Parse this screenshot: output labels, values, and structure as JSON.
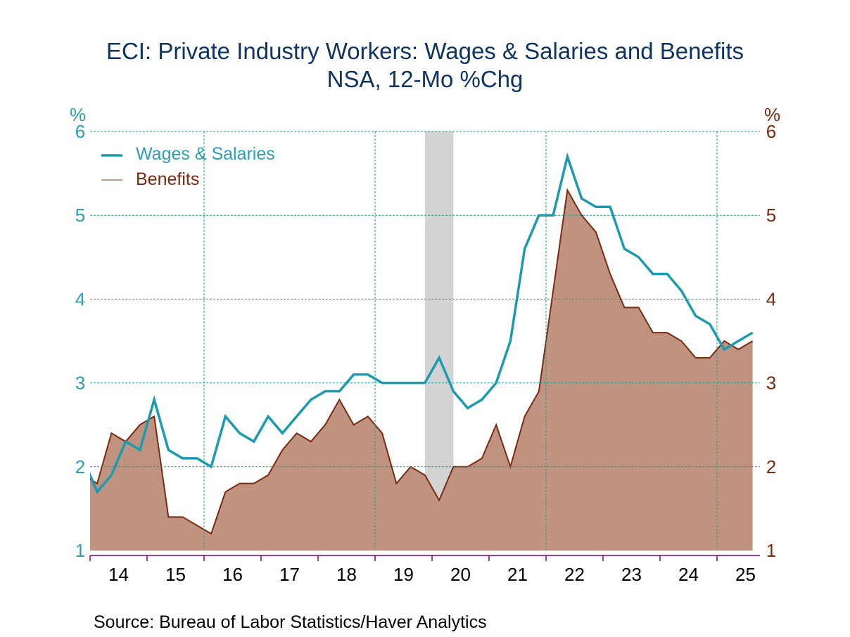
{
  "chart_data": {
    "type": "area",
    "title": "ECI: Private Industry Workers: Wages & Salaries and Benefits",
    "subtitle": "NSA, 12-Mo %Chg",
    "source": "Source:  Bureau of Labor Statistics/Haver Analytics",
    "frequency": "quarterly",
    "x": [
      "2013Q4",
      "2014Q1",
      "2014Q2",
      "2014Q3",
      "2014Q4",
      "2015Q1",
      "2015Q2",
      "2015Q3",
      "2015Q4",
      "2016Q1",
      "2016Q2",
      "2016Q3",
      "2016Q4",
      "2017Q1",
      "2017Q2",
      "2017Q3",
      "2017Q4",
      "2018Q1",
      "2018Q2",
      "2018Q3",
      "2018Q4",
      "2019Q1",
      "2019Q2",
      "2019Q3",
      "2019Q4",
      "2020Q1",
      "2020Q2",
      "2020Q3",
      "2020Q4",
      "2021Q1",
      "2021Q2",
      "2021Q3",
      "2021Q4",
      "2022Q1",
      "2022Q2",
      "2022Q3",
      "2022Q4",
      "2023Q1",
      "2023Q2",
      "2023Q3",
      "2023Q4",
      "2024Q1",
      "2024Q2",
      "2024Q3",
      "2024Q4",
      "2025Q1",
      "2025Q2",
      "2025Q3"
    ],
    "series": [
      {
        "name": "Wages & Salaries",
        "render": "line",
        "axis": "left",
        "color": "#1a9bb0",
        "values": [
          2.1,
          1.7,
          1.9,
          2.3,
          2.2,
          2.8,
          2.2,
          2.1,
          2.1,
          2.0,
          2.6,
          2.4,
          2.3,
          2.6,
          2.4,
          2.6,
          2.8,
          2.9,
          2.9,
          3.1,
          3.1,
          3.0,
          3.0,
          3.0,
          3.0,
          3.3,
          2.9,
          2.7,
          2.8,
          3.0,
          3.5,
          4.6,
          5.0,
          5.0,
          5.7,
          5.2,
          5.1,
          5.1,
          4.6,
          4.5,
          4.3,
          4.3,
          4.1,
          3.8,
          3.7,
          3.4,
          3.5,
          3.6
        ]
      },
      {
        "name": "Benefits",
        "render": "area",
        "axis": "right",
        "color": "#7a2a10",
        "fill": "#bf9380",
        "legend_color": "#b8a096",
        "values": [
          1.9,
          1.8,
          2.4,
          2.3,
          2.5,
          2.6,
          1.4,
          1.4,
          1.3,
          1.2,
          1.7,
          1.8,
          1.8,
          1.9,
          2.2,
          2.4,
          2.3,
          2.5,
          2.8,
          2.5,
          2.6,
          2.4,
          1.8,
          2.0,
          1.9,
          1.6,
          2.0,
          2.0,
          2.1,
          2.5,
          2.0,
          2.6,
          2.9,
          4.1,
          5.3,
          5.0,
          4.8,
          4.3,
          3.9,
          3.9,
          3.6,
          3.6,
          3.5,
          3.3,
          3.3,
          3.5,
          3.4,
          3.5
        ]
      }
    ],
    "xlim": [
      "2014-01-01",
      "2025-09-30"
    ],
    "x_tick_labels": [
      "14",
      "15",
      "16",
      "17",
      "18",
      "19",
      "20",
      "21",
      "22",
      "23",
      "24",
      "25"
    ],
    "x_tick_years": [
      2014,
      2015,
      2016,
      2017,
      2018,
      2019,
      2020,
      2021,
      2022,
      2023,
      2024,
      2025
    ],
    "vertical_gridline_years": [
      2016,
      2019,
      2022,
      2025
    ],
    "y_left": {
      "label": "%",
      "lim": [
        1,
        6
      ],
      "ticks": [
        1,
        2,
        3,
        4,
        5,
        6
      ],
      "color": "#2aa0b2"
    },
    "y_right": {
      "label": "%",
      "lim": [
        1,
        6
      ],
      "ticks": [
        1,
        2,
        3,
        4,
        5,
        6
      ],
      "color": "#7a2a10"
    },
    "grid": true,
    "recession_shading": {
      "from": "2019Q4",
      "to": "2020Q2",
      "color": "#d3d3d3"
    },
    "legend": {
      "placement": "top-left",
      "entries": [
        "Wages & Salaries",
        "Benefits"
      ]
    }
  }
}
